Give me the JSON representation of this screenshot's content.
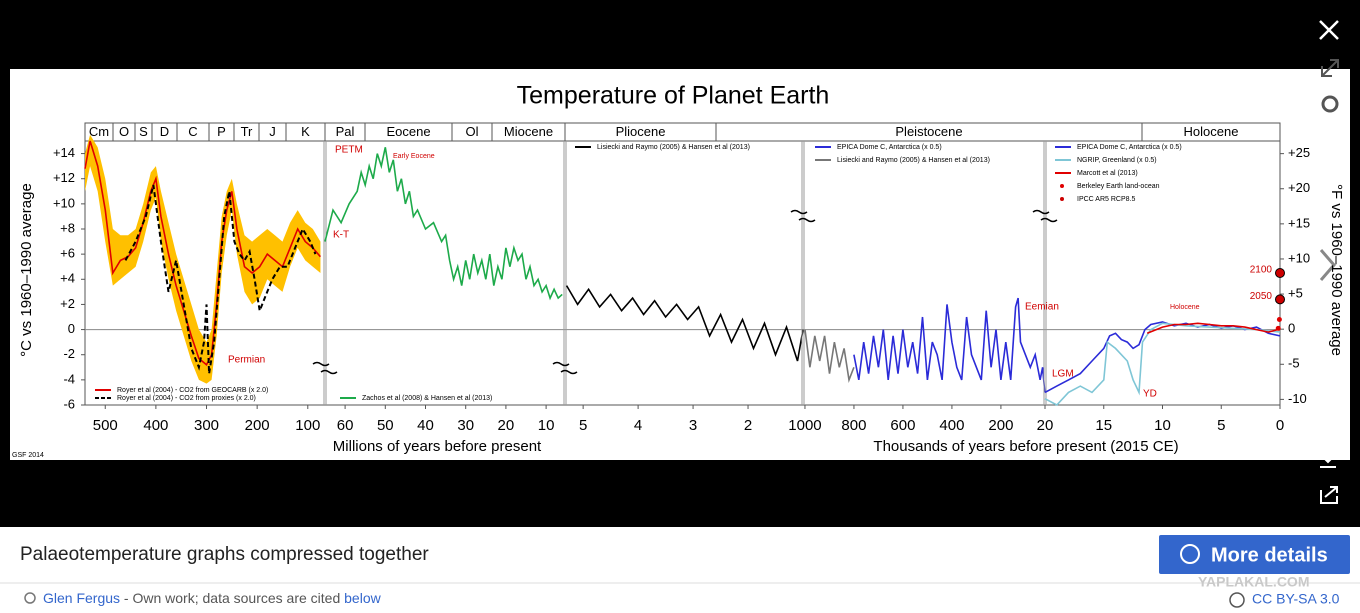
{
  "viewer": {
    "caption": "Palaeotemperature graphs compressed together",
    "details_button": "More details",
    "author": "Glen Fergus",
    "credit_text": " - Own work; data sources are cited ",
    "credit_link": "below",
    "license": "CC BY-SA 3.0",
    "watermark": "YAPLAKAL.COM"
  },
  "chart_data": {
    "type": "line",
    "title": "Temperature of Planet Earth",
    "ylabel": "°C vs 1960–1990 average",
    "y2label": "°F vs 1960–1990 average",
    "credit": "GSF 2014",
    "xlabels": [
      "Millions of years before present",
      "Thousands of years before present (2015 CE)"
    ],
    "periods": [
      "Cm",
      "O",
      "S",
      "D",
      "C",
      "P",
      "Tr",
      "J",
      "K",
      "Pal",
      "Eocene",
      "Ol",
      "Miocene",
      "Pliocene",
      "Pleistocene",
      "Holocene"
    ],
    "ylim": [
      -6,
      15
    ],
    "yticks": [
      {
        "value": 14,
        "label": "+14"
      },
      {
        "value": 12,
        "label": "+12"
      },
      {
        "value": 10,
        "label": "+10"
      },
      {
        "value": 8,
        "label": "+8"
      },
      {
        "value": 6,
        "label": "+6"
      },
      {
        "value": 4,
        "label": "+4"
      },
      {
        "value": 2,
        "label": "+2"
      },
      0,
      -2,
      -4,
      -6
    ],
    "y2lim": [
      -10.8,
      26.8
    ],
    "y2ticks": [
      {
        "value": 25,
        "label": "+25"
      },
      {
        "value": 20,
        "label": "+20"
      },
      {
        "value": 15,
        "label": "+15"
      },
      {
        "value": 10,
        "label": "+10"
      },
      {
        "value": 5,
        "label": "+5"
      },
      0,
      -5,
      -10
    ],
    "annotations": [
      "PETM",
      "Early Eocene",
      "K-T",
      "Permian",
      "Eemian",
      "LGM",
      "YD",
      "Holocene"
    ],
    "panels": [
      {
        "xlim": [
          540,
          66
        ],
        "xticks": [
          500,
          400,
          300,
          200,
          100
        ],
        "series": [
          {
            "name": "Royer et al (2004) - CO2 from GEOCARB (x 2.0)",
            "color": "#e00000",
            "band_color": "#ffc000",
            "x": [
              540,
              530,
              515,
              500,
              485,
              470,
              455,
              440,
              425,
              410,
              400,
              390,
              375,
              360,
              345,
              330,
              315,
              300,
              290,
              280,
              270,
              260,
              250,
              240,
              225,
              210,
              195,
              180,
              165,
              150,
              135,
              120,
              105,
              90,
              75
            ],
            "values": [
              12.8,
              15,
              13,
              9.5,
              4.5,
              5.5,
              5.8,
              6.5,
              8.5,
              11,
              12,
              9,
              6,
              3.5,
              1.5,
              -0.5,
              -2.3,
              -2.8,
              -2,
              2,
              7,
              9.5,
              11,
              8,
              5,
              4.5,
              5,
              6,
              5.5,
              5,
              6.5,
              8,
              7,
              6.5,
              5.8
            ],
            "upper": [
              14,
              15.5,
              14.5,
              12,
              8,
              7.5,
              7.5,
              8,
              10,
              12.5,
              13,
              11,
              8.5,
              6,
              4,
              2,
              0,
              -1,
              0,
              4.5,
              9,
              11,
              12,
              10,
              7.5,
              7,
              7.5,
              8,
              7.5,
              7,
              8.5,
              9.5,
              8.5,
              8,
              7
            ],
            "lower": [
              11,
              13,
              11,
              7,
              3.5,
              4,
              4.5,
              5,
              7,
              9.5,
              10.5,
              7,
              4,
              1.5,
              -0.5,
              -2.5,
              -4,
              -4.3,
              -4,
              -0.5,
              4.5,
              7.5,
              9.5,
              6,
              3,
              2,
              2.5,
              4,
              3.5,
              3,
              5,
              6.5,
              5.5,
              5,
              4.5
            ]
          },
          {
            "name": "Royer et al (2004) - CO2 from proxies (x 2.0)",
            "color": "#000000",
            "dashed": true,
            "x": [
              460,
              440,
              420,
              405,
              390,
              375,
              360,
              345,
              330,
              315,
              305,
              300,
              295,
              285,
              275,
              265,
              255,
              245,
              235,
              225,
              215,
              205,
              195,
              185,
              170,
              155,
              140,
              125,
              110,
              95,
              85
            ],
            "values": [
              5.5,
              7,
              9,
              11.5,
              7,
              3,
              5.5,
              2,
              -1.5,
              -3,
              -1,
              2,
              -3.5,
              -1,
              4,
              9,
              11,
              7,
              6,
              5.5,
              6.2,
              4,
              1.5,
              2.5,
              4,
              5,
              5,
              6.5,
              8,
              7,
              6
            ]
          }
        ]
      },
      {
        "xlim": [
          65,
          5.3
        ],
        "xticks": [
          60,
          50,
          40,
          30,
          20,
          10
        ],
        "series": [
          {
            "name": "Zachos et al (2008) & Hansen et al (2013)",
            "color": "#1daa4a",
            "x": [
              65,
              63,
              61,
              59,
              57,
              56,
              55,
              54,
              53,
              52,
              51,
              50,
              49,
              48,
              47,
              46,
              45,
              44,
              43,
              42,
              40,
              38,
              36,
              35,
              34,
              33,
              32,
              31,
              30,
              29,
              28,
              27,
              26,
              25,
              24,
              23,
              22,
              21,
              20,
              19,
              18,
              17,
              16,
              15,
              14,
              13,
              12,
              11,
              10,
              9,
              8,
              7,
              6
            ],
            "values": [
              7,
              9.5,
              8.5,
              10,
              11,
              12.5,
              11.5,
              13,
              12,
              14,
              13,
              14.5,
              12.5,
              13.5,
              11,
              12,
              10,
              11,
              9,
              9.5,
              8,
              8.5,
              7,
              7.5,
              5.5,
              4,
              5,
              3.5,
              5.5,
              4,
              6,
              4.5,
              5.5,
              4,
              6,
              3.5,
              5,
              4,
              6.5,
              5,
              6.5,
              5.5,
              6,
              4,
              5,
              3.5,
              4,
              3,
              3.5,
              2.5,
              3.2,
              2.5,
              2.8
            ]
          }
        ]
      },
      {
        "xlim": [
          5.33,
          1
        ],
        "xticks": [
          5,
          4,
          3,
          2
        ],
        "series": [
          {
            "name": "Lisiecki and Raymo (2005) & Hansen et al (2013)",
            "color": "#000000",
            "x": [
              5.3,
              5.1,
              4.9,
              4.7,
              4.5,
              4.3,
              4.1,
              3.9,
              3.7,
              3.5,
              3.3,
              3.1,
              2.9,
              2.7,
              2.5,
              2.3,
              2.1,
              1.9,
              1.7,
              1.5,
              1.3,
              1.1,
              1.0
            ],
            "values": [
              3.5,
              2,
              3.2,
              1.8,
              2.8,
              1.5,
              2.5,
              1.2,
              2.3,
              1,
              2,
              0.8,
              1.8,
              -0.5,
              1.2,
              -1,
              0.8,
              -1.5,
              0.5,
              -2,
              0.2,
              -2.5,
              0
            ]
          }
        ]
      },
      {
        "xlim": [
          1008,
          20
        ],
        "xticks": [
          1000,
          800,
          600,
          400,
          200
        ],
        "series": [
          {
            "name": "EPICA Dome C, Antarctica (x 0.5)",
            "color": "#2b2bd8",
            "x": [
              800,
              780,
              760,
              740,
              720,
              700,
              680,
              660,
              640,
              620,
              600,
              580,
              560,
              540,
              520,
              500,
              480,
              460,
              440,
              420,
              400,
              380,
              360,
              340,
              320,
              300,
              280,
              260,
              240,
              220,
              200,
              180,
              160,
              140,
              130,
              120,
              100,
              80,
              60,
              40,
              30,
              21
            ],
            "values": [
              -2,
              -4,
              -1,
              -3.5,
              -0.5,
              -3,
              0,
              -4,
              -0.5,
              -3.5,
              0,
              -3,
              -1,
              -3.5,
              1,
              -4,
              -1,
              -2,
              -4,
              2,
              -1,
              -3,
              -4,
              1,
              -2,
              -3,
              -4,
              1.5,
              -3,
              0,
              -4,
              -1,
              -4,
              1.8,
              2.5,
              -1,
              -2,
              -3,
              -2,
              -4,
              -3,
              -5
            ]
          },
          {
            "name": "Lisiecki and Raymo (2005) & Hansen et al (2013)",
            "color": "#777777",
            "x": [
              1000,
              980,
              960,
              940,
              920,
              900,
              880,
              860,
              840,
              820,
              800
            ],
            "values": [
              0,
              -3,
              -0.5,
              -2.5,
              -0.5,
              -3.5,
              -1,
              -3,
              -1.5,
              -4,
              -3
            ]
          }
        ]
      },
      {
        "xlim": [
          20,
          0
        ],
        "xticks": [
          20,
          15,
          10,
          5,
          0
        ],
        "series": [
          {
            "name": "EPICA Dome C, Antarctica (x 0.5)",
            "color": "#2b2bd8",
            "x": [
              20,
              19,
              18,
              17,
              16,
              15,
              14.5,
              14,
              13.5,
              13,
              12.5,
              12,
              11.5,
              11,
              10,
              9,
              8,
              7,
              6,
              5,
              4,
              3,
              2,
              1,
              0
            ],
            "values": [
              -5,
              -4.5,
              -4,
              -3.5,
              -2.5,
              -1.5,
              -0.5,
              -0.3,
              -0.8,
              -1,
              -1.5,
              -1.2,
              0,
              0.4,
              0.6,
              0.3,
              0.5,
              0.2,
              0.4,
              0.1,
              0.3,
              0,
              0.2,
              -0.3,
              -0.5
            ]
          },
          {
            "name": "NGRIP, Greenland (x 0.5)",
            "color": "#7fc6d6",
            "x": [
              20,
              19,
              18,
              17,
              16,
              15,
              14.7,
              14,
              13,
              12.5,
              12,
              11.7,
              11,
              10,
              8,
              6,
              4,
              2,
              0
            ],
            "values": [
              -5.5,
              -6,
              -5,
              -4.5,
              -5,
              -4,
              -1,
              -1.5,
              -2.5,
              -4,
              -5,
              -1,
              0,
              0.5,
              0.3,
              0.2,
              0.1,
              0,
              -0.2
            ]
          },
          {
            "name": "Marcott et al (2013)",
            "color": "#e00000",
            "x": [
              11.3,
              10,
              9,
              8,
              7,
              6,
              5,
              4,
              3,
              2,
              1,
              0.2
            ],
            "values": [
              -0.3,
              0.2,
              0.4,
              0.4,
              0.5,
              0.4,
              0.3,
              0.3,
              0.2,
              0,
              -0.2,
              0
            ]
          },
          {
            "name": "Berkeley Earth land-ocean",
            "color": "#e00000",
            "points": true,
            "x": [
              0.15,
              0.05
            ],
            "values": [
              0.1,
              0.8
            ]
          },
          {
            "name": "IPCC AR5 RCP8.5",
            "color": "#cc0000",
            "points": true,
            "labels": [
              "2100",
              "2050"
            ],
            "x": [
              0,
              0
            ],
            "values": [
              4.5,
              2.4
            ]
          }
        ]
      }
    ]
  }
}
